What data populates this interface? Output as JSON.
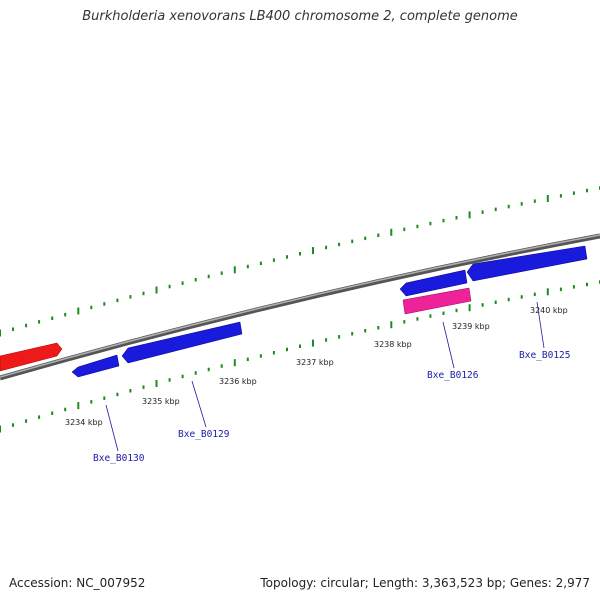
{
  "title": "Burkholderia xenovorans LB400 chromosome 2, complete genome",
  "footer": {
    "accession": "Accession: NC_007952",
    "summary": "Topology: circular; Length: 3,363,523 bp; Genes: 2,977"
  },
  "colors": {
    "backbone": "#888888",
    "tick": "#1f8a1f",
    "gene_forward": "#ff1a1a",
    "gene_reverse": "#1a1aee",
    "gene_other": "#ee2299",
    "label": "#1a1aa6"
  },
  "kbp_labels": [
    "3234 kbp",
    "3235 kbp",
    "3236 kbp",
    "3237 kbp",
    "3238 kbp",
    "3239 kbp",
    "3240 kbp"
  ],
  "gene_labels": [
    "Bxe_B0130",
    "Bxe_B0129",
    "Bxe_B0126",
    "Bxe_B0125"
  ]
}
